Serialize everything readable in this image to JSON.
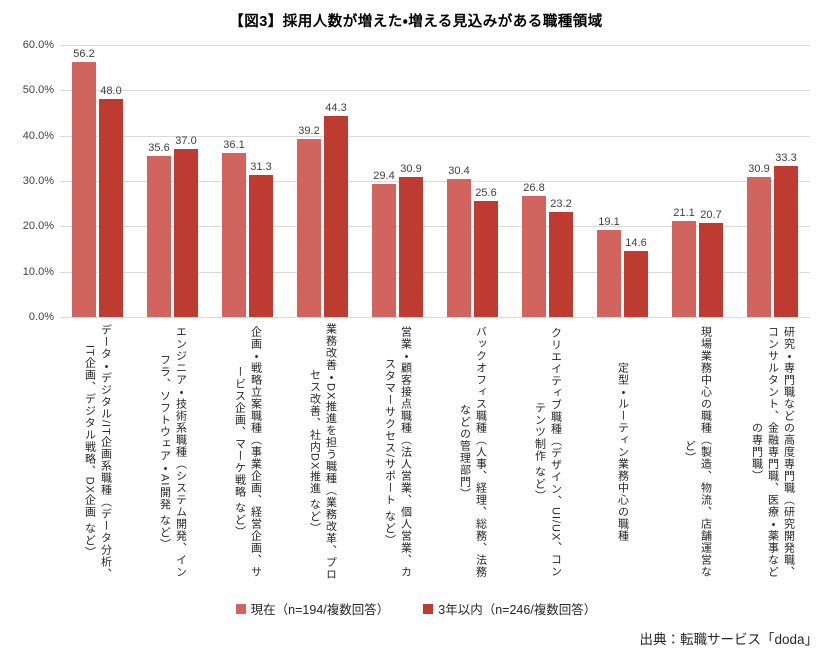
{
  "chart_data": {
    "type": "bar",
    "title": "【図3】採用人数が増えた・増える見込みがある職種領域",
    "categories": [
      "データ・デジタル/IT企画系職種（データ分析、IT企画、デジタル戦略、DX企画 など）",
      "エンジニア・技術系職種（システム開発、インフラ、ソフトウェア・AI開発 など）",
      "企画・戦略立案職種（事業企画、経営企画、サービス企画、マーケ戦略 など）",
      "業務改善・DX推進を担う職種（業務改革、プロセス改善、社内DX推進 など）",
      "営業・顧客接点職種（法人営業、個人営業、カスタマーサクセス/サポート など）",
      "バックオフィス職種（人事、経理、総務、法務 などの管理部門）",
      "クリエイティブ職種（デザイン、UI/UX、コンテンツ制作 など）",
      "定型・ルーティン業務中心の職種",
      "現場業務中心の職種（製造、物流、店舗運営など）",
      "研究・専門職などの高度専門職（研究開発職、コンサルタント、金融専門職、医療・薬事などの専門職）"
    ],
    "series": [
      {
        "name": "現在（n=194/複数回答）",
        "color": "#D1645F",
        "values": [
          56.2,
          35.6,
          36.1,
          39.2,
          29.4,
          30.4,
          26.8,
          19.1,
          21.1,
          30.9
        ]
      },
      {
        "name": "3年以内（n=246/複数回答）",
        "color": "#BE3B32",
        "values": [
          48.0,
          37.0,
          31.3,
          44.3,
          30.9,
          25.6,
          23.2,
          14.6,
          20.7,
          33.3
        ]
      }
    ],
    "ylim": [
      0,
      60
    ],
    "yticks": [
      "60.0%",
      "50.0%",
      "40.0%",
      "30.0%",
      "20.0%",
      "10.0%",
      "0.0%"
    ],
    "grid": true,
    "value_labels": true,
    "legend_position": "bottom",
    "source": "出典：転職サービス「doda」",
    "colors": {
      "grid": "#d9d9d9",
      "axis_text": "#404040",
      "label_text": "#262626"
    }
  }
}
